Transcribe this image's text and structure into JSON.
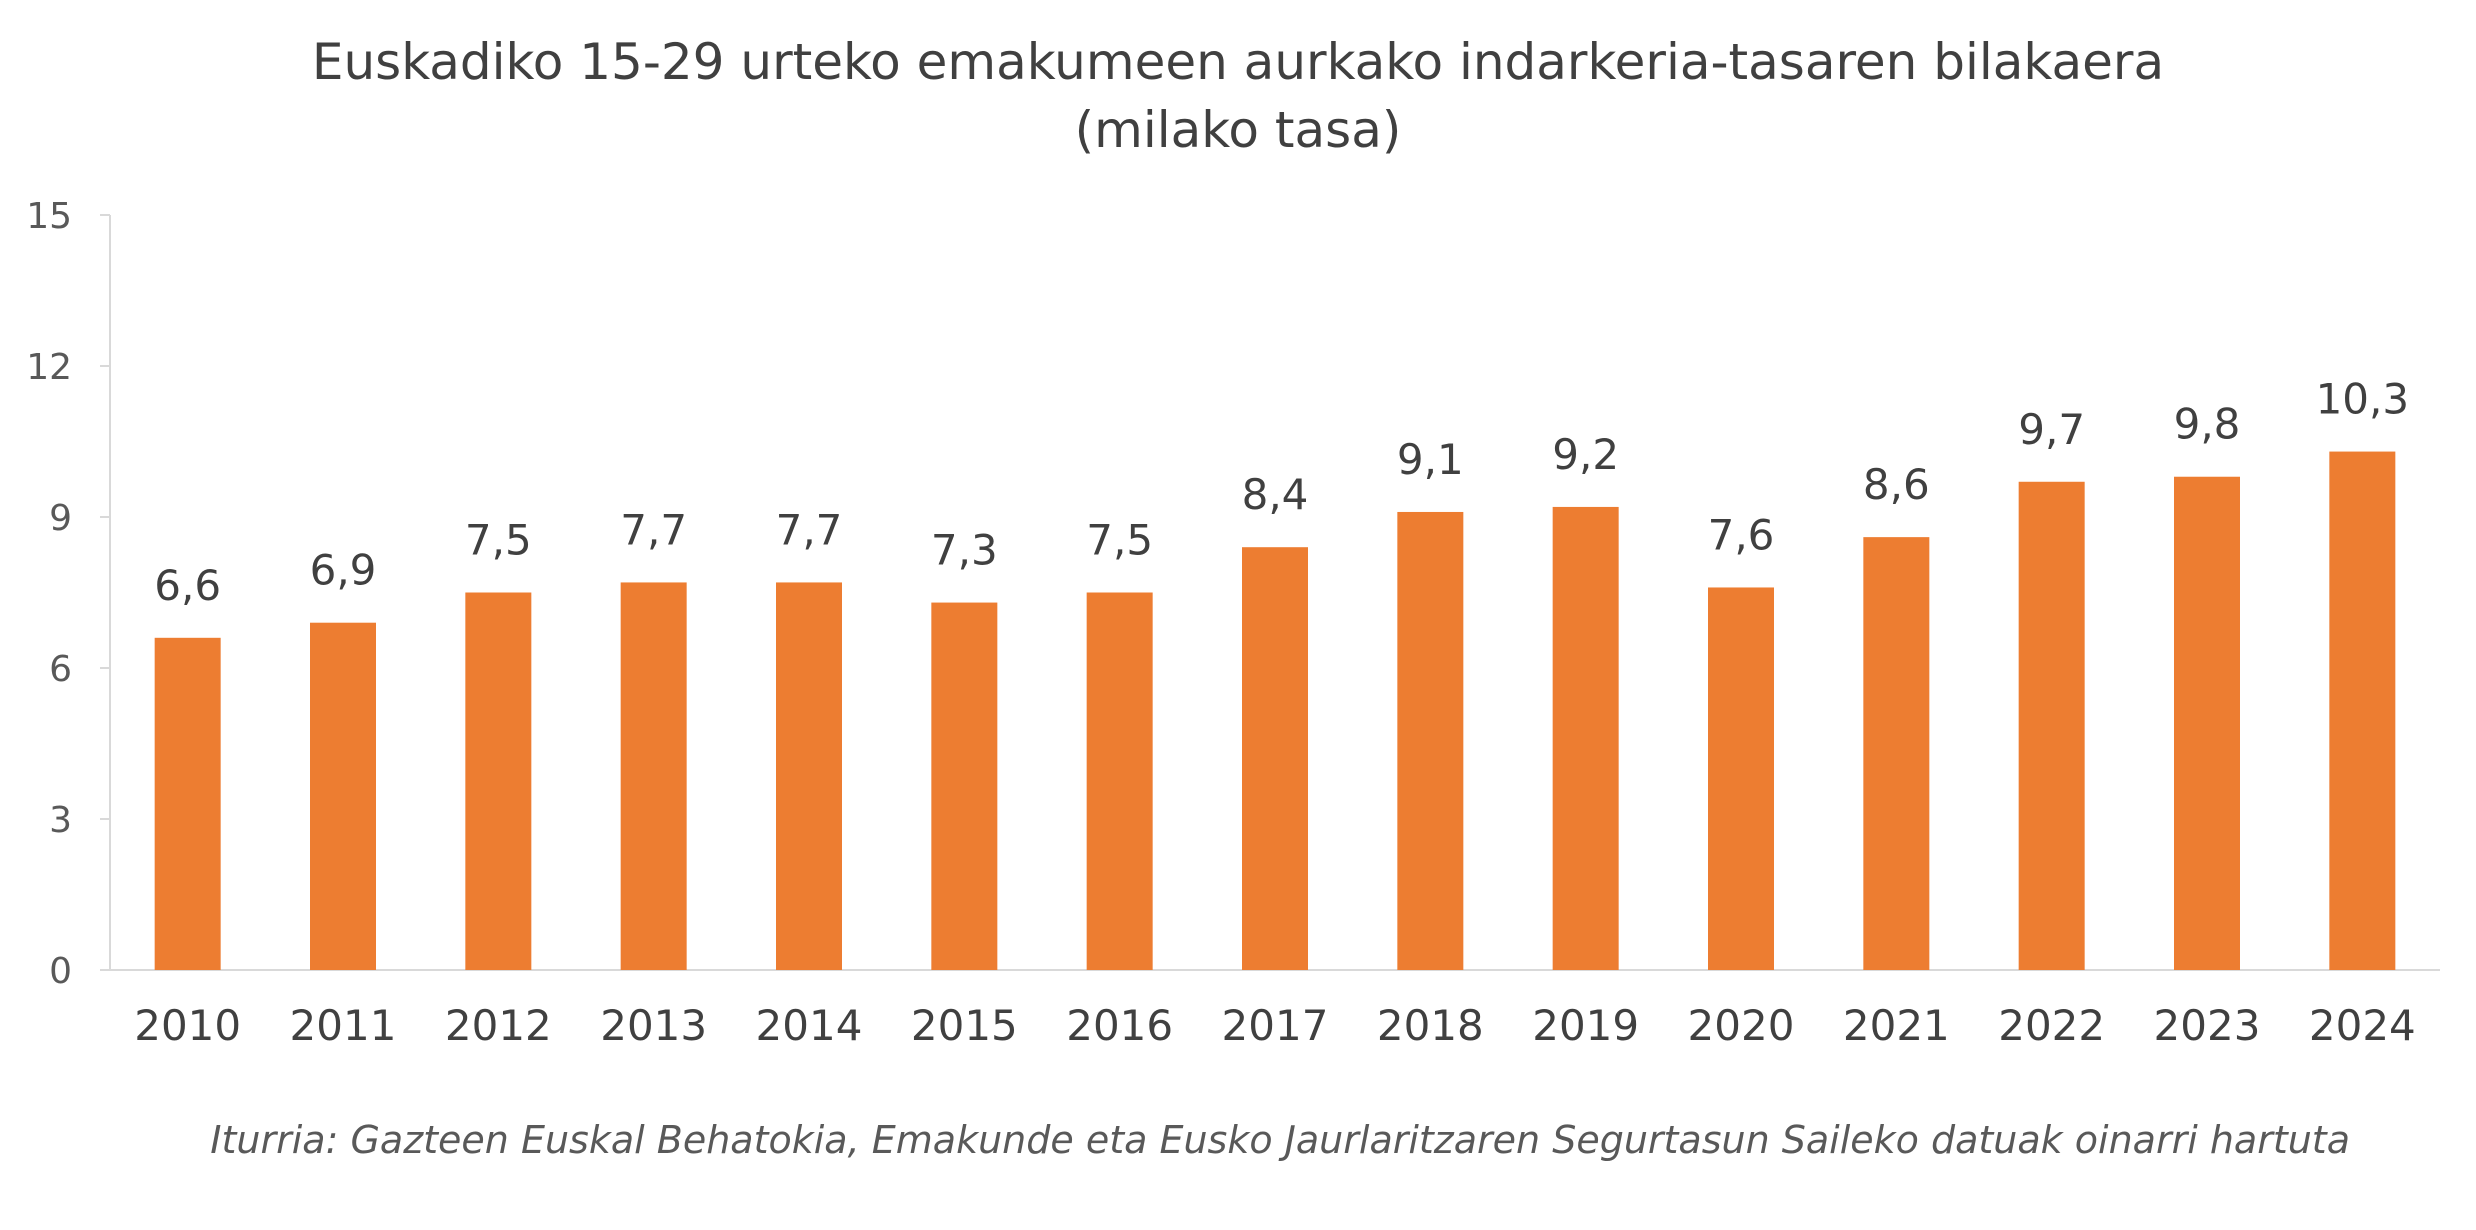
{
  "chart_data": {
    "type": "bar",
    "title": "Euskadiko 15-29 urteko emakumeen aurkako indarkeria-tasaren bilakaera",
    "subtitle": "(milako tasa)",
    "categories": [
      "2010",
      "2011",
      "2012",
      "2013",
      "2014",
      "2015",
      "2016",
      "2017",
      "2018",
      "2019",
      "2020",
      "2021",
      "2022",
      "2023",
      "2024"
    ],
    "values": [
      6.6,
      6.9,
      7.5,
      7.7,
      7.7,
      7.3,
      7.5,
      8.4,
      9.1,
      9.2,
      7.6,
      8.6,
      9.7,
      9.8,
      10.3
    ],
    "data_labels": [
      "6,6",
      "6,9",
      "7,5",
      "7,7",
      "7,7",
      "7,3",
      "7,5",
      "8,4",
      "9,1",
      "9,2",
      "7,6",
      "8,6",
      "9,7",
      "9,8",
      "10,3"
    ],
    "xlabel": "",
    "ylabel": "",
    "ylim": [
      0,
      15
    ],
    "yticks": [
      "0",
      "3",
      "6",
      "9",
      "12",
      "15"
    ],
    "grid": false,
    "legend": "none",
    "bar_color": "#ED7D31"
  },
  "source": "Iturria: Gazteen Euskal Behatokia, Emakunde eta Eusko Jaurlaritzaren Segurtasun Saileko datuak oinarri hartuta"
}
